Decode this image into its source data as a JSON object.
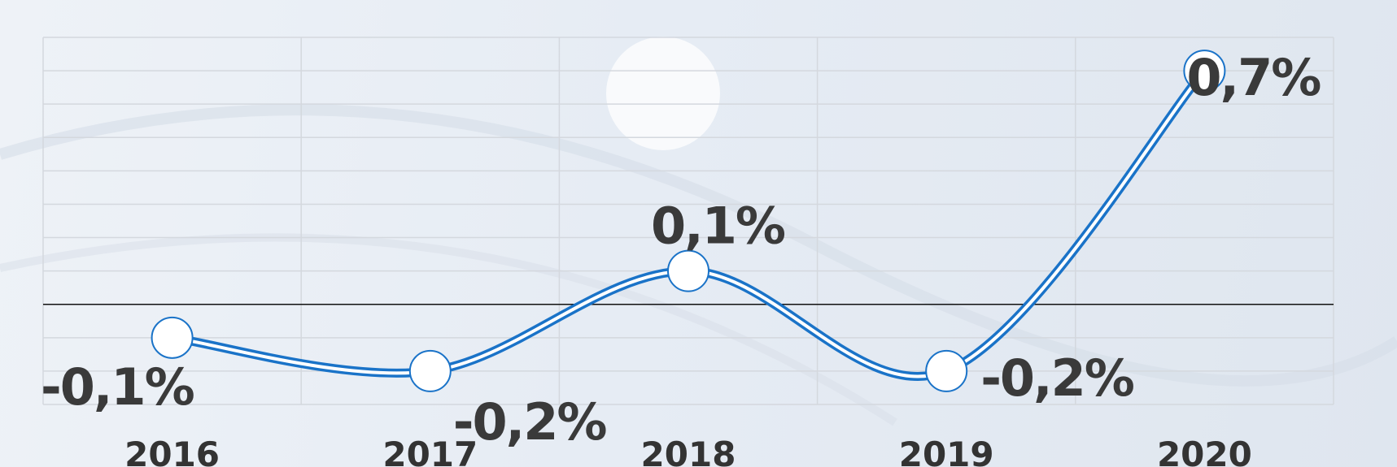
{
  "chart_data": {
    "type": "line",
    "categories": [
      "2016",
      "2017",
      "2018",
      "2019",
      "2020"
    ],
    "values": [
      -0.1,
      -0.2,
      0.1,
      -0.2,
      0.7
    ],
    "value_labels": [
      "-0,1%",
      "-0,2%",
      "0,1%",
      "-0,2%",
      "0,7%"
    ],
    "color": "#1a73c8",
    "ylim": [
      -0.3,
      0.8
    ],
    "yticks": [
      -0.3,
      -0.2,
      -0.1,
      0,
      0.1,
      0.2,
      0.3,
      0.4,
      0.5,
      0.6,
      0.7,
      0.8
    ],
    "grid": true
  }
}
